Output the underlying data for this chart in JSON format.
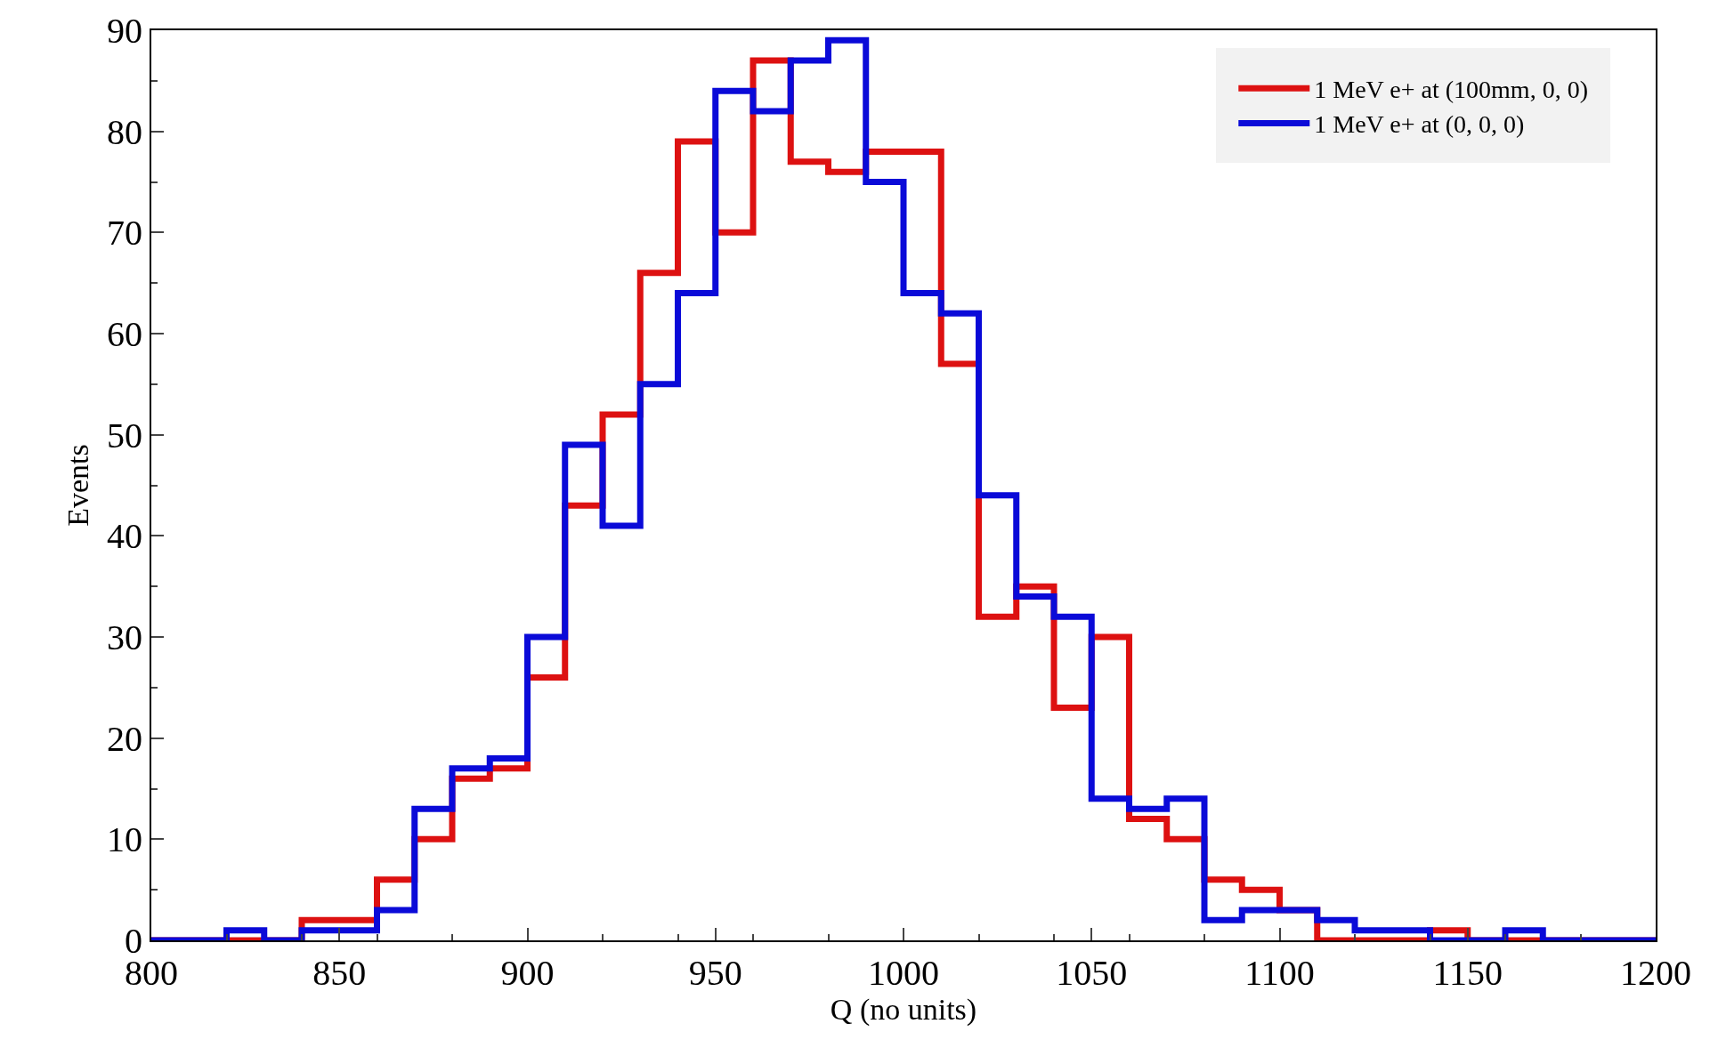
{
  "chart_data": {
    "type": "histogram",
    "xlabel": "Q (no units)",
    "ylabel": "Events",
    "bins": [
      800,
      810,
      820,
      830,
      840,
      850,
      860,
      870,
      880,
      890,
      900,
      910,
      920,
      930,
      940,
      950,
      960,
      970,
      980,
      990,
      1000,
      1010,
      1020,
      1030,
      1040,
      1050,
      1060,
      1070,
      1080,
      1090,
      1100,
      1110,
      1120,
      1130,
      1140,
      1150,
      1160,
      1170,
      1180,
      1190,
      1200
    ],
    "series": [
      {
        "name": "1 MeV e+ at (100mm, 0, 0)",
        "color": "#dd1111",
        "values": [
          0,
          0,
          0,
          0,
          2,
          2,
          6,
          10,
          16,
          17,
          26,
          43,
          52,
          66,
          79,
          70,
          87,
          77,
          76,
          78,
          78,
          57,
          32,
          35,
          23,
          30,
          12,
          10,
          6,
          5,
          3,
          0,
          0,
          0,
          1,
          0,
          0,
          0,
          0,
          0
        ]
      },
      {
        "name": "1 MeV e+ at (0, 0, 0)",
        "color": "#0a0ad8",
        "values": [
          0,
          0,
          1,
          0,
          1,
          1,
          3,
          13,
          17,
          18,
          30,
          49,
          41,
          55,
          64,
          84,
          82,
          87,
          89,
          75,
          64,
          62,
          44,
          34,
          32,
          14,
          13,
          14,
          2,
          3,
          3,
          2,
          1,
          1,
          0,
          0,
          1,
          0,
          0,
          0
        ]
      }
    ],
    "xlim": [
      800,
      1200
    ],
    "xticks": [
      800,
      850,
      900,
      950,
      1000,
      1050,
      1100,
      1150,
      1200
    ],
    "ylim": [
      0,
      90
    ],
    "yticks": [
      0,
      10,
      20,
      30,
      40,
      50,
      60,
      70,
      80,
      90
    ],
    "legend": "top right"
  }
}
